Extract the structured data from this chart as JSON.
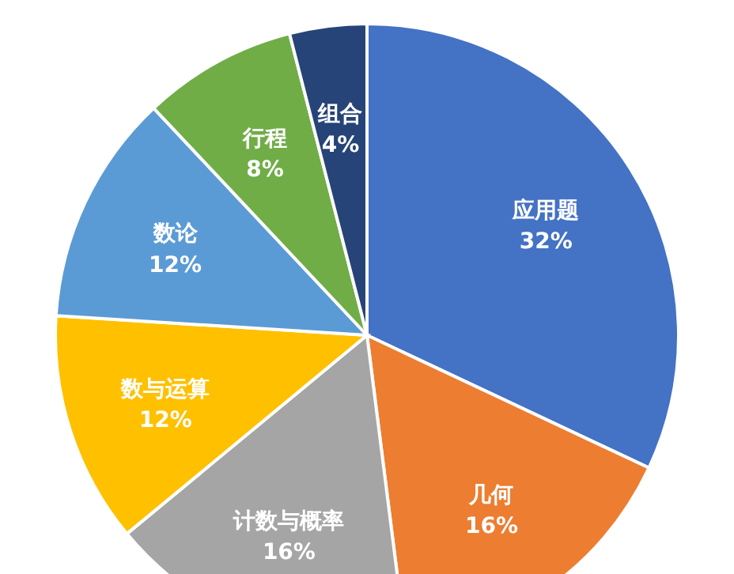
{
  "chart_data": {
    "type": "pie",
    "categories": [
      "应用题",
      "几何",
      "计数与概率",
      "数与运算",
      "数论",
      "行程",
      "组合"
    ],
    "values": [
      32,
      16,
      16,
      12,
      12,
      8,
      4
    ],
    "value_labels": [
      "32%",
      "16%",
      "16%",
      "12%",
      "12%",
      "8%",
      "4%"
    ],
    "colors": [
      "#4472c4",
      "#ed7d31",
      "#a5a5a5",
      "#ffc000",
      "#5b9bd5",
      "#70ad47",
      "#264478"
    ]
  }
}
